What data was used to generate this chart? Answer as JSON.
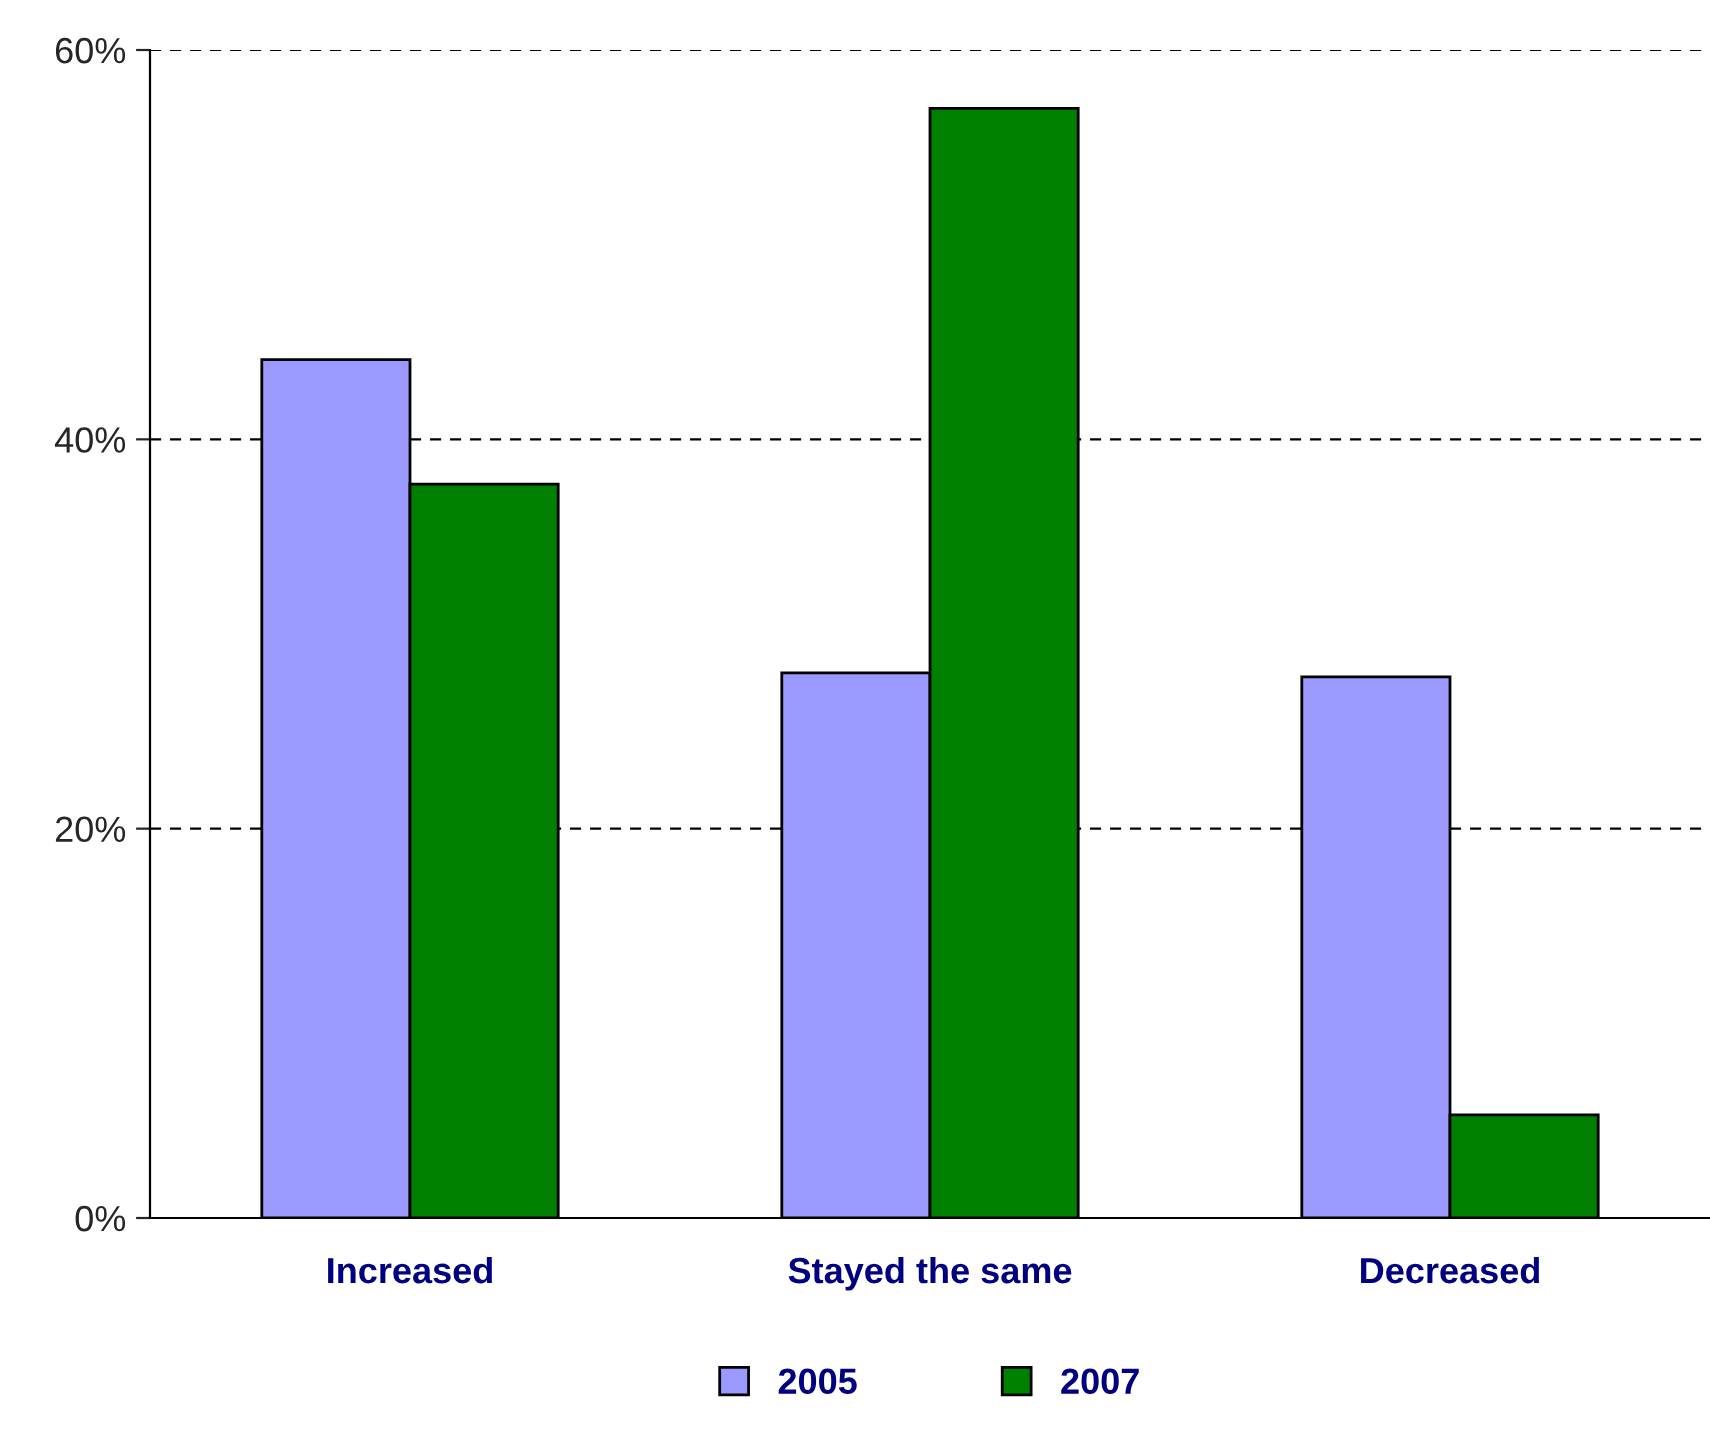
{
  "chart_data": {
    "type": "bar",
    "categories": [
      "Increased",
      "Stayed the same",
      "Decreased"
    ],
    "series": [
      {
        "name": "2005",
        "color": "#9999ff",
        "values": [
          44.1,
          28.0,
          27.8
        ]
      },
      {
        "name": "2007",
        "color": "#008000",
        "values": [
          37.7,
          57.0,
          5.3
        ]
      }
    ],
    "ylim": [
      0,
      60
    ],
    "yticks": [
      {
        "value": 0,
        "label": "0%"
      },
      {
        "value": 20,
        "label": "20%"
      },
      {
        "value": 40,
        "label": "40%"
      },
      {
        "value": 60,
        "label": "60%"
      }
    ],
    "grid": "y",
    "legend": "bottom"
  }
}
